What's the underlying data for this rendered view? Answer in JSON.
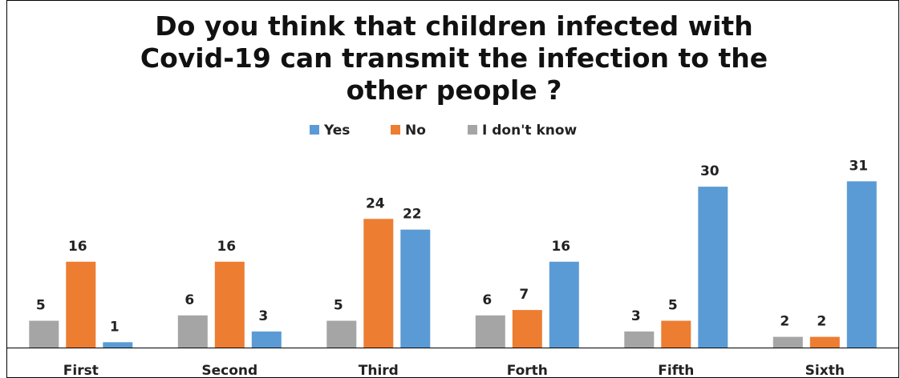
{
  "chart_data": {
    "type": "bar",
    "title": "Do you think  that children infected with Covid-19 can transmit the infection to the other people ?",
    "title_lines": [
      "Do you think  that children infected with",
      "Covid-19 can transmit the infection to the",
      "other people ?"
    ],
    "categories": [
      "First",
      "Second",
      "Third",
      "Forth",
      "Fifth",
      "Sixth"
    ],
    "series": [
      {
        "name": "Yes",
        "color": "#5b9bd5",
        "values": [
          1,
          3,
          22,
          16,
          30,
          31
        ]
      },
      {
        "name": "No",
        "color": "#ed7d31",
        "values": [
          16,
          16,
          24,
          7,
          5,
          2
        ]
      },
      {
        "name": "I don't know",
        "color": "#a5a5a5",
        "values": [
          5,
          6,
          5,
          6,
          3,
          2
        ]
      }
    ],
    "bar_order_per_category": [
      [
        "I don't know",
        "No",
        "Yes"
      ],
      [
        "I don't know",
        "No",
        "Yes"
      ],
      [
        "I don't know",
        "No",
        "Yes"
      ],
      [
        "I don't know",
        "No",
        "Yes"
      ],
      [
        "I don't know",
        "No",
        "Yes"
      ],
      [
        "I don't know",
        "No",
        "Yes"
      ]
    ],
    "legend_position": "top",
    "grid": false,
    "ylim": [
      0,
      33
    ],
    "data_labels": true,
    "xlabel": "",
    "ylabel": ""
  }
}
